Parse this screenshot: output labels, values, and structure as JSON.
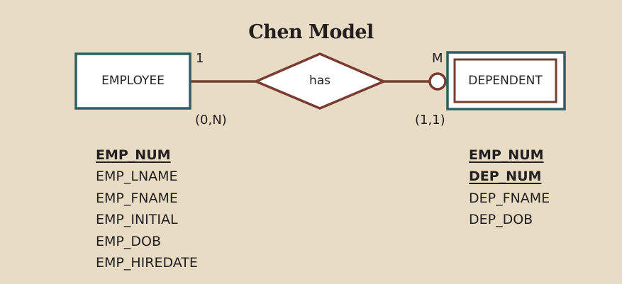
{
  "title": "Chen Model",
  "colors": {
    "background": "#e9dcc5",
    "entity_border": "#2e5e63",
    "relationship_line": "#7a3b30",
    "fill": "#ffffff"
  },
  "entities": [
    {
      "name": "EMPLOYEE",
      "type": "strong-entity",
      "attributes": [
        {
          "name": "EMP_NUM",
          "primary_key": true
        },
        {
          "name": "EMP_LNAME",
          "primary_key": false
        },
        {
          "name": "EMP_FNAME",
          "primary_key": false
        },
        {
          "name": "EMP_INITIAL",
          "primary_key": false
        },
        {
          "name": "EMP_DOB",
          "primary_key": false
        },
        {
          "name": "EMP_HIREDATE",
          "primary_key": false
        }
      ]
    },
    {
      "name": "DEPENDENT",
      "type": "weak-entity",
      "attributes": [
        {
          "name": "EMP_NUM",
          "primary_key": true
        },
        {
          "name": "DEP_NUM",
          "primary_key": true
        },
        {
          "name": "DEP_FNAME",
          "primary_key": false
        },
        {
          "name": "DEP_DOB",
          "primary_key": false
        }
      ]
    }
  ],
  "relationship": {
    "name": "has",
    "left_connectivity": "1",
    "right_connectivity": "M",
    "left_cardinality": "(0,N)",
    "right_cardinality": "(1,1)",
    "right_optional": true
  }
}
